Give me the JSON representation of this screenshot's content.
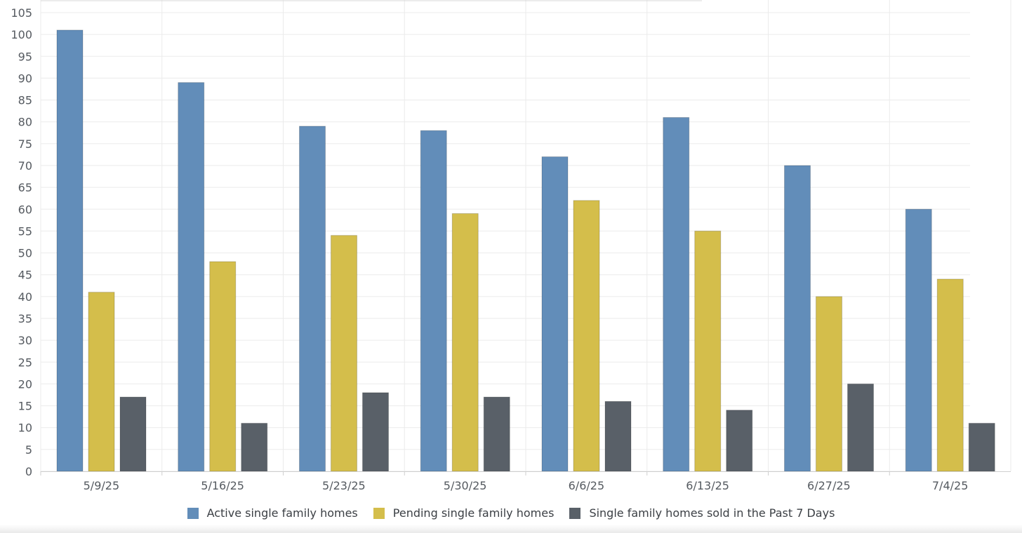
{
  "chart_data": {
    "type": "bar",
    "categories": [
      "5/9/25",
      "5/16/25",
      "5/23/25",
      "5/30/25",
      "6/6/25",
      "6/13/25",
      "6/27/25",
      "7/4/25"
    ],
    "series": [
      {
        "name": "Active single family homes",
        "color": "#628db9",
        "values": [
          101,
          89,
          79,
          78,
          72,
          81,
          70,
          60
        ]
      },
      {
        "name": "Pending single family homes",
        "color": "#d4be4b",
        "values": [
          41,
          48,
          54,
          59,
          62,
          55,
          40,
          44
        ]
      },
      {
        "name": "Single family homes sold in the Past 7 Days",
        "color": "#596068",
        "values": [
          17,
          11,
          18,
          17,
          16,
          14,
          20,
          11
        ]
      }
    ],
    "y_ticks": [
      "0",
      "5",
      "10",
      "15",
      "20",
      "25",
      "30",
      "35",
      "40",
      "45",
      "50",
      "55",
      "60",
      "65",
      "70",
      "75",
      "80",
      "85",
      "90",
      "95",
      "100",
      "105"
    ],
    "ylim": [
      0,
      105
    ],
    "ystep": 5,
    "grid": true,
    "legend_position": "bottom-center",
    "title": "",
    "xlabel": "",
    "ylabel": ""
  }
}
